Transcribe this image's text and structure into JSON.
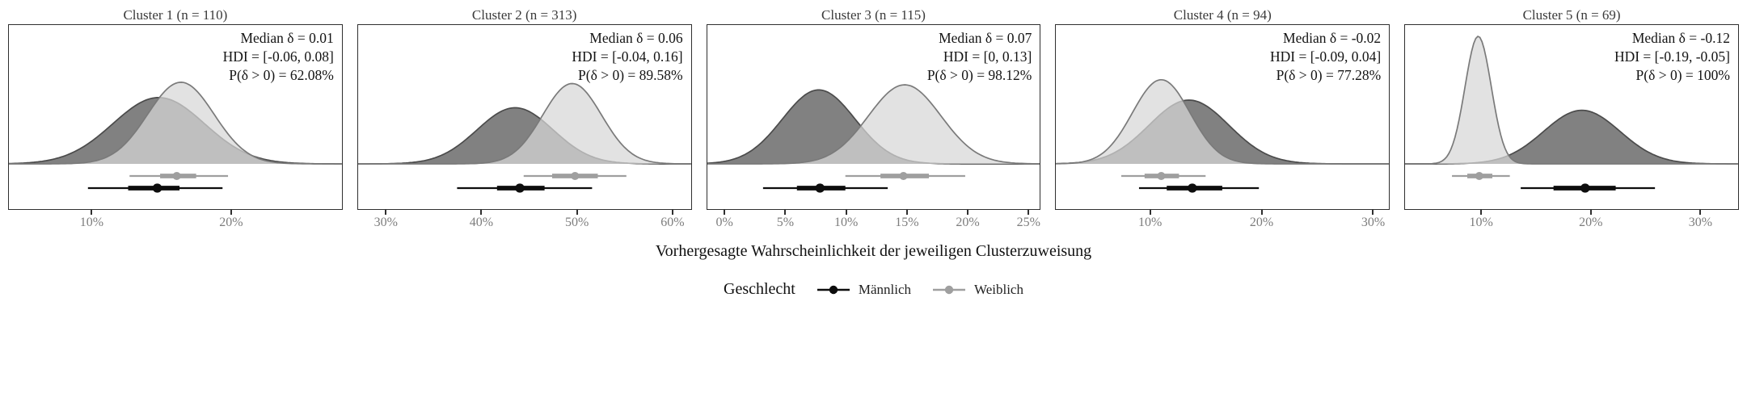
{
  "chart_data": {
    "type": "density",
    "description": "Five-panel posterior predictive density comparison by gender with point intervals",
    "xlabel": "Vorhergesagte Wahrscheinlichkeit der jeweiligen Clusterzuweisung",
    "legend": {
      "title": "Geschlecht",
      "position": "bottom",
      "items": [
        {
          "key": "maennlich",
          "label": "Männlich",
          "color": "#0d0d0d"
        },
        {
          "key": "weiblich",
          "label": "Weiblich",
          "color": "#9f9f9f"
        }
      ]
    },
    "panels": [
      {
        "title": "Cluster 1 (n = 110)",
        "annotations": [
          "Median δ = 0.01",
          "HDI = [-0.06, 0.08]",
          "P(δ > 0) = 62.08%"
        ],
        "stats": {
          "median_delta": 0.01,
          "hdi": [
            -0.06,
            0.08
          ],
          "p_delta_gt_0_pct": 62.08,
          "n": 110
        },
        "x_domain": [
          4,
          28
        ],
        "x_unit": "%",
        "ticks": [
          {
            "value": 10,
            "label": "10%"
          },
          {
            "value": 20,
            "label": "20%"
          }
        ],
        "series": [
          {
            "key": "maennlich",
            "name": "Männlich",
            "mean": 14.8,
            "sd": 3.3,
            "height": 0.52,
            "fill": "#6b6b6b",
            "stroke": "#4b4b4b",
            "fill_opacity": 0.85
          },
          {
            "key": "weiblich",
            "name": "Weiblich",
            "mean": 16.4,
            "sd": 2.4,
            "height": 0.64,
            "fill": "#d7d7d7",
            "stroke": "#7a7a7a",
            "fill_opacity": 0.72
          }
        ],
        "intervals": [
          {
            "key": "weiblich",
            "name": "Weiblich",
            "color": "#9f9f9f",
            "median": 16.1,
            "thick": [
              14.9,
              17.5
            ],
            "thin": [
              12.7,
              19.8
            ],
            "row": 0
          },
          {
            "key": "maennlich",
            "name": "Männlich",
            "color": "#0d0d0d",
            "median": 14.7,
            "thick": [
              12.6,
              16.3
            ],
            "thin": [
              9.7,
              19.4
            ],
            "row": 1
          }
        ]
      },
      {
        "title": "Cluster 2 (n = 313)",
        "annotations": [
          "Median δ = 0.06",
          "HDI = [-0.04, 0.16]",
          "P(δ > 0) = 89.58%"
        ],
        "stats": {
          "median_delta": 0.06,
          "hdi": [
            -0.04,
            0.16
          ],
          "p_delta_gt_0_pct": 89.58,
          "n": 313
        },
        "x_domain": [
          27,
          62
        ],
        "x_unit": "%",
        "ticks": [
          {
            "value": 30,
            "label": "30%"
          },
          {
            "value": 40,
            "label": "40%"
          },
          {
            "value": 50,
            "label": "50%"
          },
          {
            "value": 60,
            "label": "60%"
          }
        ],
        "series": [
          {
            "key": "maennlich",
            "name": "Männlich",
            "mean": 43.5,
            "sd": 4.0,
            "height": 0.44,
            "fill": "#6b6b6b",
            "stroke": "#4b4b4b",
            "fill_opacity": 0.85
          },
          {
            "key": "weiblich",
            "name": "Weiblich",
            "mean": 49.5,
            "sd": 3.1,
            "height": 0.63,
            "fill": "#d7d7d7",
            "stroke": "#7a7a7a",
            "fill_opacity": 0.72
          }
        ],
        "intervals": [
          {
            "key": "weiblich",
            "name": "Weiblich",
            "color": "#9f9f9f",
            "median": 49.8,
            "thick": [
              47.4,
              52.2
            ],
            "thin": [
              44.4,
              55.2
            ],
            "row": 0
          },
          {
            "key": "maennlich",
            "name": "Männlich",
            "color": "#0d0d0d",
            "median": 44.0,
            "thick": [
              41.6,
              46.6
            ],
            "thin": [
              37.4,
              51.6
            ],
            "row": 1
          }
        ]
      },
      {
        "title": "Cluster 3 (n = 115)",
        "annotations": [
          "Median δ = 0.07",
          "HDI = [0, 0.13]",
          "P(δ > 0) = 98.12%"
        ],
        "stats": {
          "median_delta": 0.07,
          "hdi": [
            0,
            0.13
          ],
          "p_delta_gt_0_pct": 98.12,
          "n": 115
        },
        "x_domain": [
          -1.5,
          26
        ],
        "x_unit": "%",
        "ticks": [
          {
            "value": 0,
            "label": "0%"
          },
          {
            "value": 5,
            "label": "5%"
          },
          {
            "value": 10,
            "label": "10%"
          },
          {
            "value": 15,
            "label": "15%"
          },
          {
            "value": 20,
            "label": "20%"
          },
          {
            "value": 25,
            "label": "25%"
          }
        ],
        "series": [
          {
            "key": "maennlich",
            "name": "Männlich",
            "mean": 7.7,
            "sd": 3.0,
            "height": 0.58,
            "fill": "#6b6b6b",
            "stroke": "#4b4b4b",
            "fill_opacity": 0.85
          },
          {
            "key": "weiblich",
            "name": "Weiblich",
            "mean": 14.8,
            "sd": 3.0,
            "height": 0.62,
            "fill": "#d7d7d7",
            "stroke": "#7a7a7a",
            "fill_opacity": 0.72
          }
        ],
        "intervals": [
          {
            "key": "weiblich",
            "name": "Weiblich",
            "color": "#9f9f9f",
            "median": 14.7,
            "thick": [
              12.8,
              16.8
            ],
            "thin": [
              9.9,
              19.8
            ],
            "row": 0
          },
          {
            "key": "maennlich",
            "name": "Männlich",
            "color": "#0d0d0d",
            "median": 7.8,
            "thick": [
              5.9,
              9.9
            ],
            "thin": [
              3.1,
              13.4
            ],
            "row": 1
          }
        ]
      },
      {
        "title": "Cluster 4 (n = 94)",
        "annotations": [
          "Median δ = -0.02",
          "HDI = [-0.09, 0.04]",
          "P(δ > 0) = 77.28%"
        ],
        "stats": {
          "median_delta": -0.02,
          "hdi": [
            -0.09,
            0.04
          ],
          "p_delta_gt_0_pct": 77.28,
          "n": 94
        },
        "x_domain": [
          1.5,
          31.5
        ],
        "x_unit": "%",
        "ticks": [
          {
            "value": 10,
            "label": "10%"
          },
          {
            "value": 20,
            "label": "20%"
          },
          {
            "value": 30,
            "label": "30%"
          }
        ],
        "series": [
          {
            "key": "maennlich",
            "name": "Männlich",
            "mean": 13.5,
            "sd": 3.6,
            "height": 0.5,
            "fill": "#6b6b6b",
            "stroke": "#4b4b4b",
            "fill_opacity": 0.85
          },
          {
            "key": "weiblich",
            "name": "Weiblich",
            "mean": 11.0,
            "sd": 2.6,
            "height": 0.66,
            "fill": "#d7d7d7",
            "stroke": "#7a7a7a",
            "fill_opacity": 0.72
          }
        ],
        "intervals": [
          {
            "key": "weiblich",
            "name": "Weiblich",
            "color": "#9f9f9f",
            "median": 11.0,
            "thick": [
              9.5,
              12.6
            ],
            "thin": [
              7.4,
              15.0
            ],
            "row": 0
          },
          {
            "key": "maennlich",
            "name": "Männlich",
            "color": "#0d0d0d",
            "median": 13.8,
            "thick": [
              11.5,
              16.5
            ],
            "thin": [
              9.0,
              19.8
            ],
            "row": 1
          }
        ]
      },
      {
        "title": "Cluster 5 (n = 69)",
        "annotations": [
          "Median δ = -0.12",
          "HDI = [-0.19, -0.05]",
          "P(δ > 0) = 100%"
        ],
        "stats": {
          "median_delta": -0.12,
          "hdi": [
            -0.19,
            -0.05
          ],
          "p_delta_gt_0_pct": 100,
          "n": 69
        },
        "x_domain": [
          3,
          33.5
        ],
        "x_unit": "%",
        "ticks": [
          {
            "value": 10,
            "label": "10%"
          },
          {
            "value": 20,
            "label": "20%"
          },
          {
            "value": 30,
            "label": "30%"
          }
        ],
        "series": [
          {
            "key": "maennlich",
            "name": "Männlich",
            "mean": 19.2,
            "sd": 3.5,
            "height": 0.42,
            "fill": "#6b6b6b",
            "stroke": "#4b4b4b",
            "fill_opacity": 0.85
          },
          {
            "key": "weiblich",
            "name": "Weiblich",
            "mean": 9.7,
            "sd": 1.2,
            "height": 1.0,
            "fill": "#d7d7d7",
            "stroke": "#7a7a7a",
            "fill_opacity": 0.72
          }
        ],
        "intervals": [
          {
            "key": "weiblich",
            "name": "Weiblich",
            "color": "#9f9f9f",
            "median": 9.8,
            "thick": [
              8.7,
              11.0
            ],
            "thin": [
              7.3,
              12.6
            ],
            "row": 0
          },
          {
            "key": "maennlich",
            "name": "Männlich",
            "color": "#0d0d0d",
            "median": 19.5,
            "thick": [
              16.6,
              22.3
            ],
            "thin": [
              13.6,
              25.9
            ],
            "row": 1
          }
        ]
      }
    ]
  }
}
